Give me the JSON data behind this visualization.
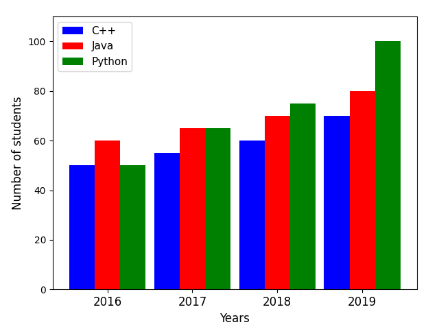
{
  "years": [
    2016,
    2017,
    2018,
    2019
  ],
  "cpp_values": [
    50,
    55,
    60,
    70
  ],
  "java_values": [
    60,
    65,
    70,
    80
  ],
  "python_values": [
    50,
    65,
    75,
    100
  ],
  "cpp_color": "#0000ff",
  "java_color": "#ff0000",
  "python_color": "#008000",
  "xlabel": "Years",
  "ylabel": "Number of students",
  "legend_labels": [
    "C++",
    "Java",
    "Python"
  ],
  "ylim": [
    0,
    110
  ],
  "bar_width": 0.3,
  "figsize": [
    6.4,
    4.8
  ],
  "dpi": 100
}
